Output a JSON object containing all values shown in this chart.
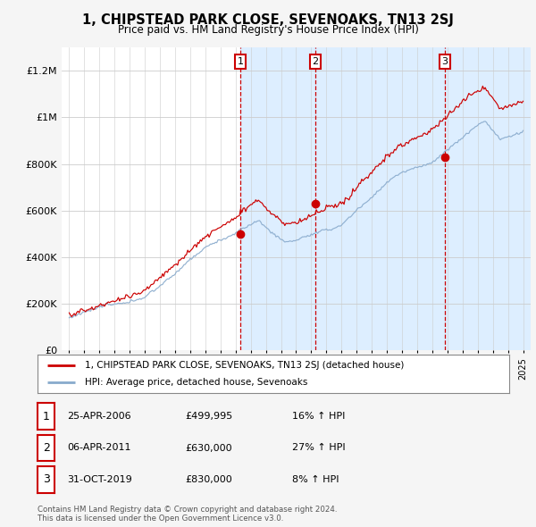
{
  "title": "1, CHIPSTEAD PARK CLOSE, SEVENOAKS, TN13 2SJ",
  "subtitle": "Price paid vs. HM Land Registry's House Price Index (HPI)",
  "ylim": [
    0,
    1300000
  ],
  "yticks": [
    0,
    200000,
    400000,
    600000,
    800000,
    1000000,
    1200000
  ],
  "ytick_labels": [
    "£0",
    "£200K",
    "£400K",
    "£600K",
    "£800K",
    "£1M",
    "£1.2M"
  ],
  "sale_years": [
    2006.32,
    2011.27,
    2019.84
  ],
  "sale_prices": [
    499995,
    630000,
    830000
  ],
  "sale_labels": [
    "1",
    "2",
    "3"
  ],
  "vline_color": "#cc0000",
  "shaded_color": "#ddeeff",
  "line1_color": "#cc0000",
  "line2_color": "#88aacc",
  "legend1_label": "1, CHIPSTEAD PARK CLOSE, SEVENOAKS, TN13 2SJ (detached house)",
  "legend2_label": "HPI: Average price, detached house, Sevenoaks",
  "table_rows": [
    {
      "num": "1",
      "date": "25-APR-2006",
      "price": "£499,995",
      "hpi": "16% ↑ HPI"
    },
    {
      "num": "2",
      "date": "06-APR-2011",
      "price": "£630,000",
      "hpi": "27% ↑ HPI"
    },
    {
      "num": "3",
      "date": "31-OCT-2019",
      "price": "£830,000",
      "hpi": "8% ↑ HPI"
    }
  ],
  "footer": "Contains HM Land Registry data © Crown copyright and database right 2024.\nThis data is licensed under the Open Government Licence v3.0.",
  "background_color": "#f5f5f5",
  "plot_bg_color": "#ffffff"
}
